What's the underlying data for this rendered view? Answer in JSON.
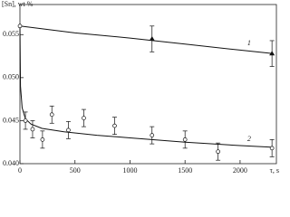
{
  "chart_data": {
    "type": "scatter",
    "y_label": "[Sn], wt %",
    "x_label": "τ, s",
    "xlim": [
      0,
      2330
    ],
    "ylim": [
      0.04,
      0.0585
    ],
    "xticks": [
      0,
      500,
      1000,
      1500,
      2000
    ],
    "yticks": [
      {
        "value": 0.04,
        "label": "0.040"
      },
      {
        "value": 0.045,
        "label": "0.045"
      },
      {
        "value": 0.05,
        "label": "0.050"
      },
      {
        "value": 0.055,
        "label": "0.055"
      }
    ],
    "series": [
      {
        "name": "1",
        "marker": "triangle",
        "color": "#111111",
        "x": [
          1200,
          2290
        ],
        "values": [
          0.0545,
          0.0528
        ],
        "errors": [
          0.0015,
          0.0015
        ],
        "fit": {
          "x": [
            0,
            500,
            1000,
            1500,
            2000,
            2300
          ],
          "values": [
            0.056,
            0.0552,
            0.0546,
            0.0539,
            0.0532,
            0.0528
          ]
        }
      },
      {
        "name": "2",
        "marker": "circle",
        "color": "#111111",
        "x": [
          0,
          50,
          115,
          205,
          290,
          440,
          580,
          860,
          1200,
          1500,
          1800,
          2290
        ],
        "values": [
          0.056,
          0.045,
          0.044,
          0.0428,
          0.0457,
          0.0439,
          0.0453,
          0.0444,
          0.0433,
          0.0428,
          0.0414,
          0.0418
        ],
        "errors": [
          null,
          0.001,
          0.001,
          0.001,
          0.001,
          0.001,
          0.001,
          0.001,
          0.001,
          0.001,
          0.001,
          0.001
        ],
        "fit": {
          "x": [
            0,
            5,
            20,
            50,
            100,
            200,
            400,
            700,
            1000,
            1500,
            2000,
            2300
          ],
          "values": [
            0.056,
            0.049,
            0.0465,
            0.0452,
            0.0446,
            0.0441,
            0.0437,
            0.0433,
            0.043,
            0.0425,
            0.0421,
            0.0419
          ]
        }
      }
    ]
  }
}
